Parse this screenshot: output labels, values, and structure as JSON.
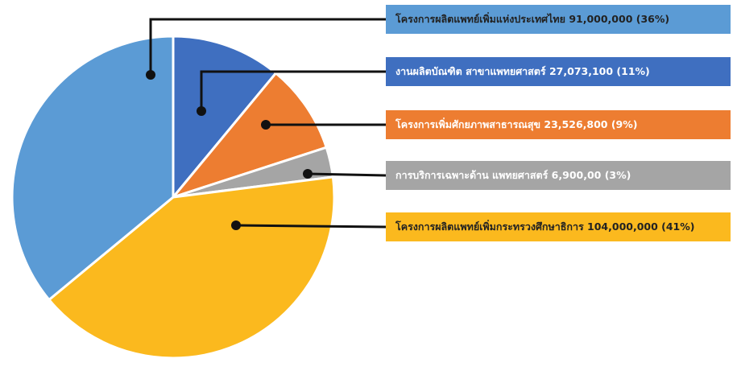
{
  "chart_data": {
    "type": "pie",
    "title": "",
    "slices": [
      {
        "label": "งานผลิตบัณฑิต สาขาแพทยศาสตร์ 27,073,100 (11%)",
        "value": 11,
        "color": "#3f6fc0",
        "text_color": "#ffffff"
      },
      {
        "label": "โครงการเพิ่มศักยภาพสาธารณสุข 23,526,800 (9%)",
        "value": 9,
        "color": "#ed7d31",
        "text_color": "#ffffff"
      },
      {
        "label": "การบริการเฉพาะด้าน แพทยศาสตร์ 6,900,00 (3%)",
        "value": 3,
        "color": "#a5a5a5",
        "text_color": "#ffffff"
      },
      {
        "label": "โครงการผลิตแพทย์เพิ่มกระทรวงศึกษาธิการ 104,000,000 (41%)",
        "value": 41,
        "color": "#fbb91e",
        "text_color": "#222222"
      },
      {
        "label": "โครงการผลิตแพทย์เพิ่มแห่งประเทศไทย 91,000,000 (36%)",
        "value": 36,
        "color": "#5b9bd5",
        "text_color": "#222222"
      }
    ],
    "legend_order": [
      4,
      0,
      1,
      2,
      3
    ],
    "legend_position": "right"
  }
}
